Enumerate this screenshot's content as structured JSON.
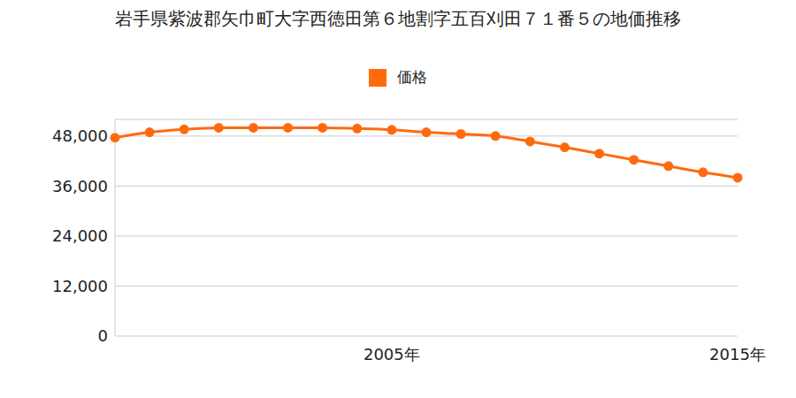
{
  "chart_data": {
    "type": "line",
    "title": "岩手県紫波郡矢巾町大字西徳田第６地割字五百刈田７１番５の地価推移",
    "categories": [
      null,
      null,
      null,
      null,
      null,
      null,
      null,
      null,
      "2005年",
      null,
      null,
      null,
      null,
      null,
      null,
      null,
      null,
      null,
      "2015年"
    ],
    "series": [
      {
        "name": "価格",
        "color": "#ff6a0f",
        "marker": "circle",
        "values": [
          47600,
          48900,
          49600,
          50000,
          50000,
          50000,
          50000,
          49800,
          49500,
          48900,
          48500,
          48000,
          46700,
          45300,
          43800,
          42300,
          40800,
          39300,
          38000
        ]
      }
    ],
    "ylim": [
      0,
      52000
    ],
    "yticks": [
      0,
      {
        "value": 12000,
        "label": "12,000"
      },
      {
        "value": 24000,
        "label": "24,000"
      },
      {
        "value": 36000,
        "label": "36,000"
      },
      {
        "value": 48000,
        "label": "48,000"
      }
    ],
    "grid": true,
    "legend": "top"
  }
}
